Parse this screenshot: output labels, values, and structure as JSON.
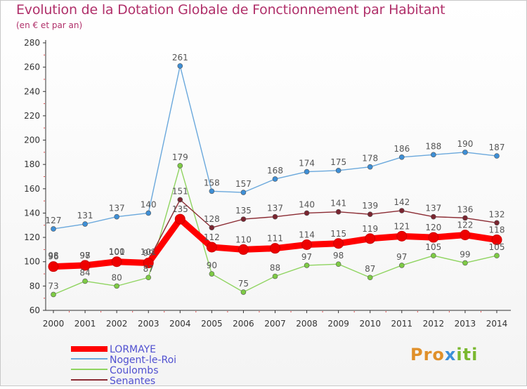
{
  "title": "Evolution de la Dotation Globale de Fonctionnement par Habitant",
  "subtitle": "(en € et par an)",
  "brand": "Proxiti",
  "chart_data": {
    "type": "line",
    "x": [
      "2000",
      "2001",
      "2002",
      "2003",
      "2004",
      "2005",
      "2006",
      "2007",
      "2008",
      "2009",
      "2010",
      "2011",
      "2012",
      "2013",
      "2014"
    ],
    "ylim": [
      60,
      280
    ],
    "yticks": [
      60,
      80,
      100,
      120,
      140,
      160,
      180,
      200,
      220,
      240,
      260,
      280
    ],
    "grid": false,
    "legend_position": "bottom-left",
    "series": [
      {
        "name": "Coulombs",
        "color": "#8fd460",
        "marker": "#7ecb45",
        "values": [
          73,
          84,
          80,
          87,
          179,
          90,
          75,
          88,
          97,
          98,
          87,
          97,
          105,
          99,
          105
        ]
      },
      {
        "name": "Nogent-le-Roi",
        "color": "#6aa8dc",
        "marker": "#3e8fd6",
        "values": [
          127,
          131,
          137,
          140,
          261,
          158,
          157,
          168,
          174,
          175,
          178,
          186,
          188,
          190,
          187
        ]
      },
      {
        "name": "Senantes",
        "color": "#8b2b33",
        "marker": "#7a2530",
        "values": [
          98,
          98,
          101,
          101,
          151,
          128,
          135,
          137,
          140,
          141,
          139,
          142,
          137,
          136,
          132
        ]
      },
      {
        "name": "LORMAYE",
        "color": "#ff0000",
        "marker": "#ee0000",
        "values": [
          96,
          97,
          100,
          99,
          135,
          112,
          110,
          111,
          114,
          115,
          119,
          121,
          120,
          122,
          118
        ]
      }
    ],
    "legend": [
      "LORMAYE",
      "Nogent-le-Roi",
      "Coulombs",
      "Senantes"
    ]
  }
}
